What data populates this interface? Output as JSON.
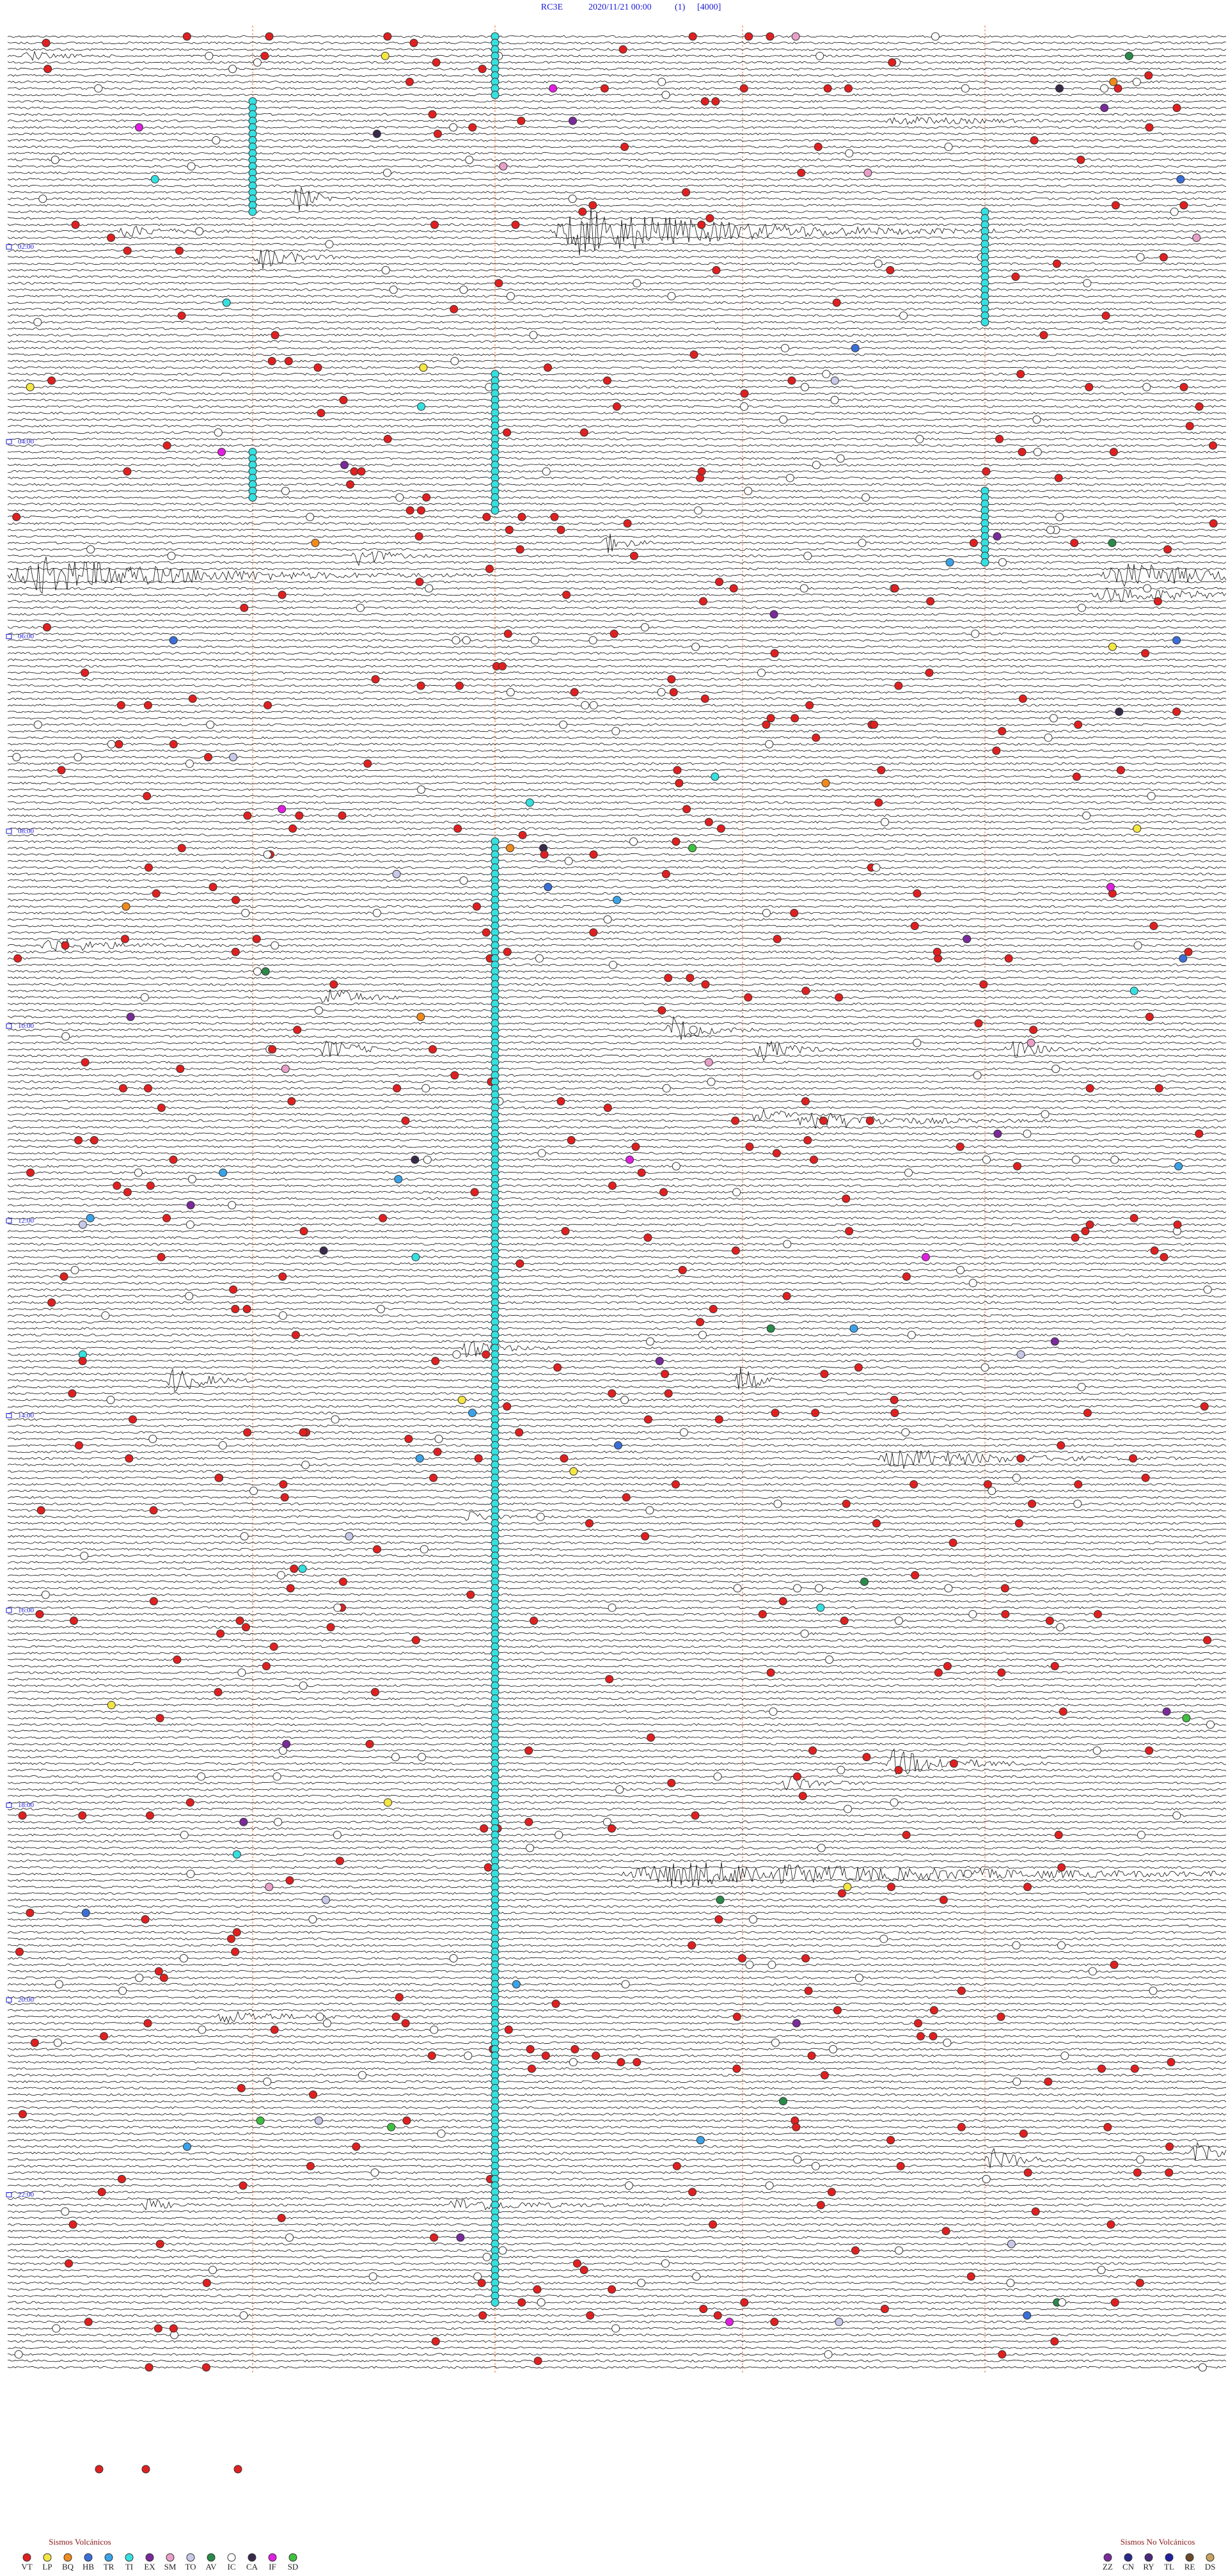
{
  "header": {
    "station": "RC3E",
    "datetime": "2020/11/21 00:00",
    "channel": "(1)",
    "scale": "[4000]"
  },
  "time_labels": [
    "02:00",
    "04:00",
    "06:00",
    "08:00",
    "10:00",
    "12:00",
    "14:00",
    "16:00",
    "18:00",
    "20:00",
    "22:00"
  ],
  "legend": {
    "volcanic": {
      "title": "Sismos Volcánicos",
      "items": [
        {
          "code": "VT",
          "color": "#e02020"
        },
        {
          "code": "LP",
          "color": "#f5e642"
        },
        {
          "code": "BQ",
          "color": "#f08a1c"
        },
        {
          "code": "HB",
          "color": "#3a6fd8"
        },
        {
          "code": "TR",
          "color": "#3aa3e8"
        },
        {
          "code": "TI",
          "color": "#35e0e0"
        },
        {
          "code": "EX",
          "color": "#7a2a9a"
        },
        {
          "code": "SM",
          "color": "#e8a0c8"
        },
        {
          "code": "TO",
          "color": "#c8c8e8"
        },
        {
          "code": "AV",
          "color": "#2a8a4a"
        },
        {
          "code": "IC",
          "color": "#ffffff"
        },
        {
          "code": "CA",
          "color": "#3a2a4a"
        },
        {
          "code": "IF",
          "color": "#e020e0"
        },
        {
          "code": "SD",
          "color": "#40c040"
        }
      ]
    },
    "non_volcanic": {
      "title": "Sismos No Volcánicos",
      "items": [
        {
          "code": "ZZ",
          "color": "#7a2a9a"
        },
        {
          "code": "CN",
          "color": "#2a2a8a"
        },
        {
          "code": "RY",
          "color": "#4a2a7a"
        },
        {
          "code": "TL",
          "color": "#2020a0"
        },
        {
          "code": "RE",
          "color": "#6a4a2a"
        },
        {
          "code": "DS",
          "color": "#c8a060"
        }
      ]
    }
  }
}
